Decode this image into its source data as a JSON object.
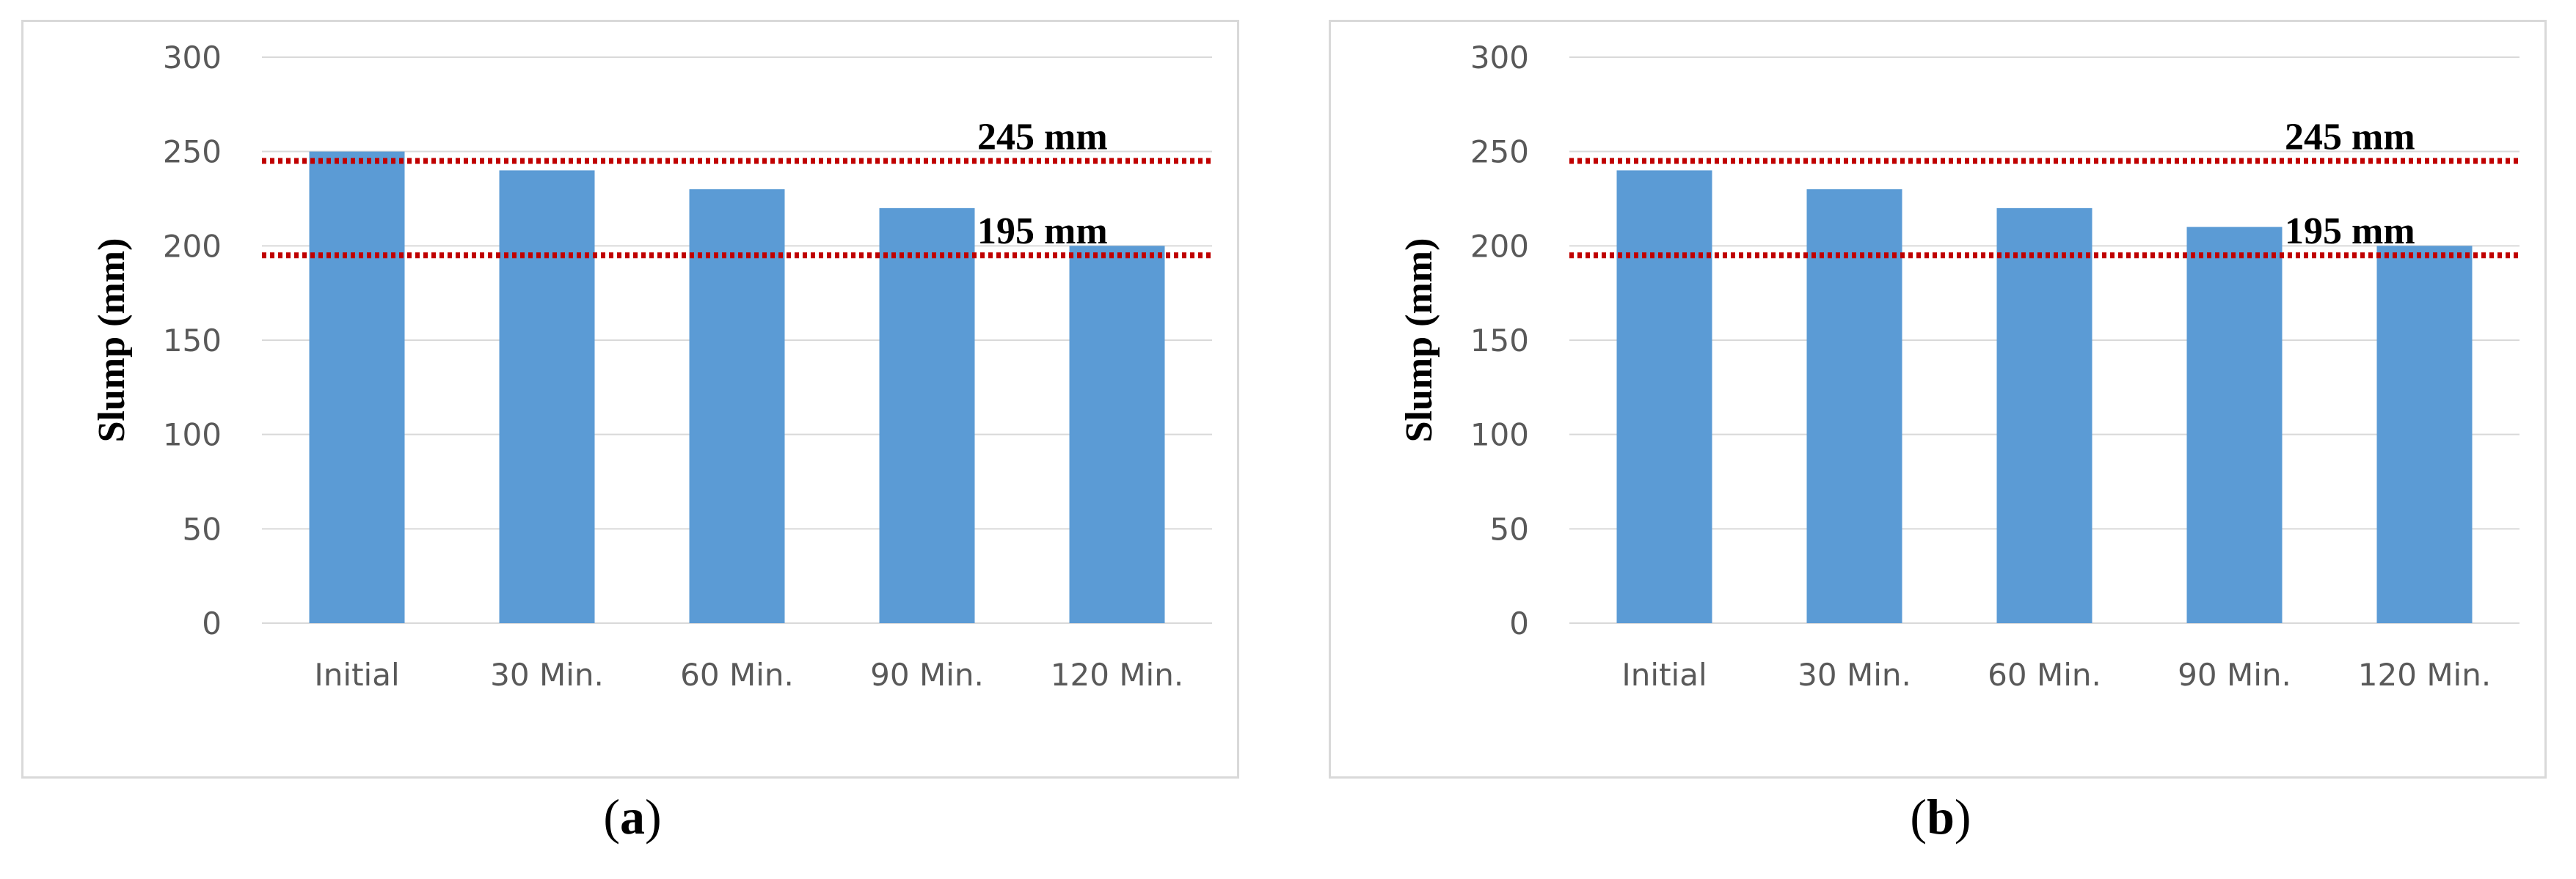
{
  "chart_data": [
    {
      "type": "bar",
      "panel_label": "a",
      "categories": [
        "Initial",
        "30 Min.",
        "60 Min.",
        "90 Min.",
        "120 Min."
      ],
      "values": [
        250,
        240,
        230,
        220,
        200
      ],
      "ylabel": "Slump (mm)",
      "xlabel": "",
      "ylim": [
        0,
        300
      ],
      "yticks": [
        0,
        50,
        100,
        150,
        200,
        250,
        300
      ],
      "bar_color": "#5b9bd5",
      "grid": true,
      "reference_lines": [
        {
          "value": 245,
          "label": "245 mm",
          "color": "#c00000",
          "style": "dotted"
        },
        {
          "value": 195,
          "label": "195 mm",
          "color": "#c00000",
          "style": "dotted"
        }
      ]
    },
    {
      "type": "bar",
      "panel_label": "b",
      "categories": [
        "Initial",
        "30 Min.",
        "60 Min.",
        "90 Min.",
        "120 Min."
      ],
      "values": [
        240,
        230,
        220,
        210,
        200
      ],
      "ylabel": "Slump (mm)",
      "xlabel": "",
      "ylim": [
        0,
        300
      ],
      "yticks": [
        0,
        50,
        100,
        150,
        200,
        250,
        300
      ],
      "bar_color": "#5b9bd5",
      "grid": true,
      "reference_lines": [
        {
          "value": 245,
          "label": "245 mm",
          "color": "#c00000",
          "style": "dotted"
        },
        {
          "value": 195,
          "label": "195 mm",
          "color": "#c00000",
          "style": "dotted"
        }
      ]
    }
  ]
}
